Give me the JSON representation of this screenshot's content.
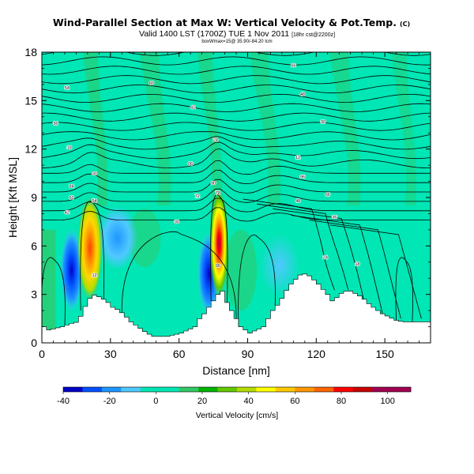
{
  "chart_data": {
    "type": "contour",
    "title": "Wind-Parallel Section at Max W: Vertical Velocity & Pot.Temp.",
    "title_mark": "(C)",
    "subtitle": "Valid 1400 LST (1700Z) TUE 1 Nov 2011",
    "subtitle_extra": "[18hr cst@2200z]",
    "subtitle_small": "boxWmax=15@ 35.90/-84.20 lcm",
    "xlabel": "Distance [nm]",
    "ylabel": "Height [Kft MSL]",
    "xlim": [
      0,
      170
    ],
    "ylim": [
      0,
      18
    ],
    "xticks": [
      "0",
      "30",
      "60",
      "90",
      "120",
      "150"
    ],
    "xtick_values": [
      0,
      30,
      60,
      90,
      120,
      150
    ],
    "yticks": [
      "0",
      "3",
      "6",
      "9",
      "12",
      "15",
      "18"
    ],
    "ytick_values": [
      0,
      3,
      6,
      9,
      12,
      15,
      18
    ],
    "colorbar": {
      "label": "Vertical Velocity [cm/s]",
      "ticks": [
        "-40",
        "-20",
        "0",
        "20",
        "40",
        "60",
        "80",
        "100"
      ],
      "tick_values": [
        -40,
        -20,
        0,
        20,
        40,
        60,
        80,
        100
      ],
      "range": [
        -40,
        110
      ],
      "colors": [
        "#0000c8",
        "#0050ff",
        "#1e96ff",
        "#50c8ff",
        "#00e6b4",
        "#00e6b4",
        "#32c864",
        "#00b400",
        "#64c800",
        "#b4dc00",
        "#ffff00",
        "#ffc800",
        "#ff9600",
        "#ff6400",
        "#ff0000",
        "#c80000",
        "#a00050",
        "#a00050"
      ]
    },
    "terrain": {
      "x": [
        0,
        2,
        5,
        8,
        12,
        15,
        17,
        19,
        21,
        25,
        28,
        30,
        33,
        36,
        38,
        41,
        43,
        45,
        48,
        51,
        54,
        57,
        60,
        63,
        66,
        68,
        70,
        72,
        74,
        76,
        78,
        80,
        82,
        84,
        86,
        88,
        90,
        93,
        96,
        98,
        100,
        103,
        105,
        107,
        109,
        112,
        115,
        117,
        119,
        122,
        124,
        126,
        128,
        131,
        134,
        137,
        140,
        143,
        146,
        148,
        151,
        154,
        157,
        160,
        163,
        166,
        170
      ],
      "y": [
        1.0,
        0.8,
        0.9,
        1.0,
        1.2,
        1.3,
        2.0,
        2.5,
        3.0,
        2.8,
        2.5,
        2.2,
        2.0,
        1.6,
        1.3,
        1.0,
        0.8,
        0.6,
        0.4,
        0.4,
        0.4,
        0.5,
        0.6,
        0.8,
        1.0,
        1.5,
        1.8,
        2.2,
        2.6,
        3.0,
        3.2,
        2.5,
        2.0,
        1.5,
        1.0,
        0.8,
        0.6,
        0.8,
        1.0,
        1.5,
        2.0,
        2.5,
        3.0,
        3.5,
        3.8,
        4.2,
        4.3,
        4.0,
        3.8,
        3.3,
        3.0,
        2.6,
        2.8,
        3.2,
        3.2,
        3.0,
        2.7,
        2.3,
        2.0,
        1.8,
        1.6,
        1.4,
        1.3,
        1.3,
        1.3,
        1.3,
        1.3
      ]
    },
    "updraft_cores": [
      {
        "x": 21,
        "y_bottom": 3.0,
        "y_top": 8.7,
        "peak": 70
      },
      {
        "x": 77.5,
        "y_bottom": 3.2,
        "y_top": 9.1,
        "peak": 110
      }
    ],
    "downdraft_cores": [
      {
        "x": 13,
        "y": 4.5,
        "value": -40
      },
      {
        "x": 73,
        "y": 4.3,
        "value": -40
      },
      {
        "x": 33,
        "y": 6.5,
        "value": -20
      },
      {
        "x": 104,
        "y": 4.8,
        "value": -10
      }
    ],
    "theta_contour_labels": [
      {
        "x": 110,
        "y": 17.2,
        "text": "66"
      },
      {
        "x": 48,
        "y": 16.1,
        "text": "60"
      },
      {
        "x": 11,
        "y": 15.8,
        "text": "54"
      },
      {
        "x": 114,
        "y": 15.4,
        "text": "48"
      },
      {
        "x": 66,
        "y": 14.6,
        "text": "42"
      },
      {
        "x": 6,
        "y": 13.6,
        "text": "36"
      },
      {
        "x": 123,
        "y": 13.7,
        "text": "30"
      },
      {
        "x": 76,
        "y": 12.6,
        "text": "24"
      },
      {
        "x": 12,
        "y": 12.1,
        "text": "18"
      },
      {
        "x": 112,
        "y": 11.5,
        "text": "12"
      },
      {
        "x": 65,
        "y": 11.1,
        "text": "06"
      },
      {
        "x": 23,
        "y": 10.5,
        "text": "00"
      },
      {
        "x": 114,
        "y": 10.3,
        "text": "96"
      },
      {
        "x": 75,
        "y": 9.9,
        "text": "90"
      },
      {
        "x": 13,
        "y": 9.7,
        "text": "84"
      },
      {
        "x": 77,
        "y": 9.3,
        "text": "78"
      },
      {
        "x": 68,
        "y": 9.1,
        "text": "72"
      },
      {
        "x": 125,
        "y": 9.2,
        "text": "66"
      },
      {
        "x": 13,
        "y": 9.0,
        "text": "60"
      },
      {
        "x": 23,
        "y": 8.8,
        "text": "54"
      },
      {
        "x": 112,
        "y": 8.8,
        "text": "48"
      },
      {
        "x": 11,
        "y": 8.1,
        "text": "42"
      },
      {
        "x": 128,
        "y": 7.8,
        "text": "36"
      },
      {
        "x": 59,
        "y": 7.5,
        "text": "30"
      },
      {
        "x": 124,
        "y": 5.3,
        "text": "24"
      },
      {
        "x": 138,
        "y": 4.9,
        "text": "18"
      },
      {
        "x": 23,
        "y": 4.2,
        "text": "12"
      },
      {
        "x": 77,
        "y": 4.8,
        "text": "06"
      }
    ]
  }
}
